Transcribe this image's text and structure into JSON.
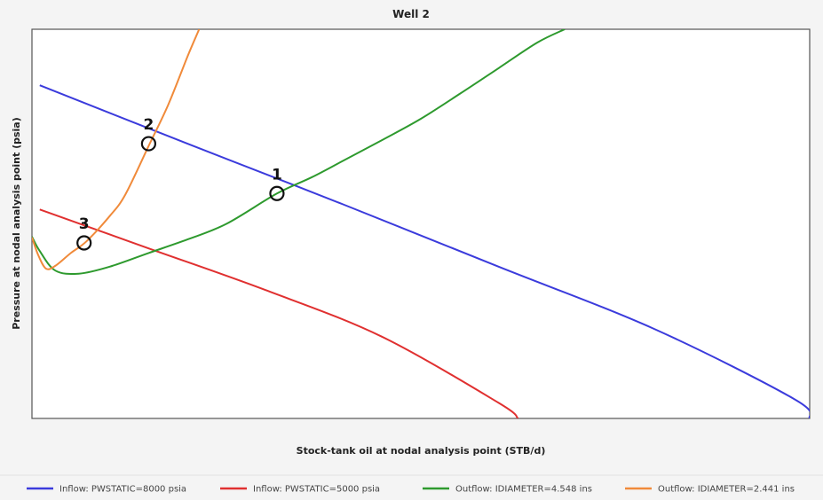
{
  "chart_data": {
    "type": "line",
    "title": "Well 2",
    "xlabel": "Stock-tank oil at nodal analysis point (STB/d)",
    "ylabel": "Pressure at nodal analysis point (psia)",
    "xlim": [
      0,
      1000
    ],
    "ylim": [
      0,
      1000
    ],
    "grid": false,
    "legend_position": "bottom",
    "tick_labels_shown": false,
    "series": [
      {
        "name": "Inflow: PWSTATIC=8000 psia",
        "color": "#3b3bdc",
        "x": [
          10,
          200,
          400,
          600,
          800,
          980,
          1000
        ],
        "y": [
          856,
          706,
          550,
          390,
          230,
          50,
          0
        ]
      },
      {
        "name": "Inflow: PWSTATIC=5000 psia",
        "color": "#e03030",
        "x": [
          10,
          150,
          300,
          450,
          600,
          625
        ],
        "y": [
          537,
          437,
          330,
          210,
          40,
          0
        ]
      },
      {
        "name": "Outflow: IDIAMETER=4.548 ins",
        "color": "#2e9a2e",
        "x": [
          0,
          10,
          30,
          60,
          100,
          150,
          200,
          250,
          315,
          360,
          400,
          450,
          500,
          550,
          600,
          650,
          685
        ],
        "y": [
          467,
          430,
          380,
          372,
          390,
          425,
          460,
          500,
          578,
          620,
          662,
          715,
          770,
          834,
          900,
          966,
          1000
        ]
      },
      {
        "name": "Outflow: IDIAMETER=2.441 ins",
        "color": "#f08a3a",
        "x": [
          0,
          8,
          18,
          30,
          50,
          70,
          100,
          120,
          150,
          175,
          200,
          215
        ],
        "y": [
          465,
          420,
          385,
          392,
          425,
          455,
          520,
          575,
          700,
          805,
          930,
          1000
        ]
      }
    ],
    "annotations": [
      {
        "label": "1",
        "x": 315,
        "y": 578
      },
      {
        "label": "2",
        "x": 150,
        "y": 706
      },
      {
        "label": "3",
        "x": 67,
        "y": 451
      }
    ]
  }
}
